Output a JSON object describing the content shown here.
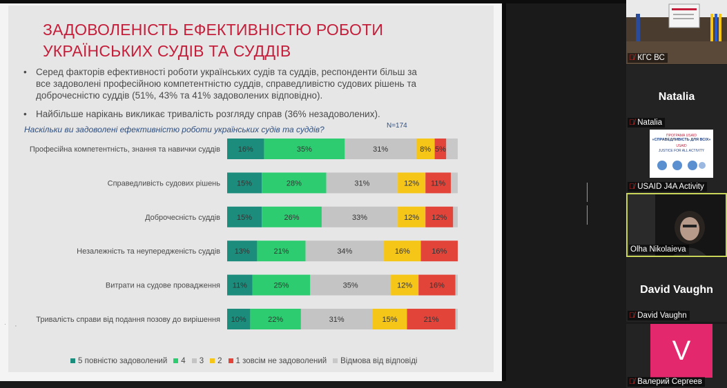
{
  "slide": {
    "title": "ЗАДОВОЛЕНІСТЬ ЕФЕКТИВНІСТЮ РОБОТИ УКРАЇНСЬКИХ СУДІВ ТА СУДДІВ",
    "bullets": [
      "Серед факторів ефективності роботи українських судів та суддів, респонденти більш за все задоволені професійною компетентністю суддів, справедливістю судових рішень та доброчесністю суддів (51%, 43% та 41% задоволених відповідно).",
      "Найбільше нарікань викликає тривалість розгляду справ (36% незадоволених)."
    ],
    "bullet_symbol": "•",
    "question": "Наскільки ви задоволені ефективністю роботи українських судів та суддів?",
    "n_label": "N=174"
  },
  "chart_data": {
    "type": "bar",
    "orientation": "horizontal",
    "stacked": true,
    "categories": [
      "Професійна компетентність, знання та навички суддів",
      "Справедливість судових рішень",
      "Доброчесність суддів",
      "Незалежність та неупередженість суддів",
      "Витрати на судове провадження",
      "Тривалість справи від подання позову до вирішення"
    ],
    "series": [
      {
        "name": "5 повністю задоволений",
        "color": "#1c8c7c",
        "values": [
          16,
          15,
          15,
          13,
          11,
          10
        ]
      },
      {
        "name": "4",
        "color": "#2ecc71",
        "values": [
          35,
          28,
          26,
          21,
          25,
          22
        ]
      },
      {
        "name": "3",
        "color": "#c4c4c4",
        "values": [
          31,
          31,
          33,
          34,
          35,
          31
        ]
      },
      {
        "name": "2",
        "color": "#f5c518",
        "values": [
          8,
          12,
          12,
          16,
          12,
          15
        ]
      },
      {
        "name": "1 зовсім не задоволений",
        "color": "#e2443a",
        "values": [
          5,
          11,
          12,
          16,
          16,
          21
        ]
      },
      {
        "name": "Відмова від відповіді",
        "color": "#c8c8c8",
        "values": [
          5,
          3,
          2,
          0,
          1,
          1
        ]
      }
    ],
    "label_suffix": "%",
    "label_series": [
      0,
      1,
      2,
      3,
      4
    ],
    "xlim": [
      0,
      100
    ],
    "grid": false,
    "legend": "bottom"
  },
  "participants": [
    {
      "name": "КГС ВС",
      "big_name": "",
      "muted": true,
      "active": false,
      "kind": "video-room"
    },
    {
      "name": "Natalia",
      "big_name": "Natalia",
      "muted": true,
      "active": false,
      "kind": "name"
    },
    {
      "name": "USAID J4A Activity",
      "big_name": "",
      "muted": true,
      "active": false,
      "kind": "usaid-card",
      "card": {
        "l1": "ПРОГРАМА USAID",
        "l2": "«СПРАВЕДЛИВІСТЬ ДЛЯ ВСІХ»",
        "l3": "USAID",
        "l4": "JUSTICE FOR ALL ACTIVITY"
      }
    },
    {
      "name": "Olha Nikolaieva",
      "big_name": "",
      "muted": false,
      "active": true,
      "kind": "video-person"
    },
    {
      "name": "David Vaughn",
      "big_name": "David Vaughn",
      "muted": true,
      "active": false,
      "kind": "name"
    },
    {
      "name": "Валерий Сергеев",
      "big_name": "",
      "muted": true,
      "active": false,
      "kind": "avatar",
      "avatar_letter": "V"
    }
  ],
  "icons": {
    "mute": "muted-mic-icon",
    "divider": "panel-resize-handle-icon"
  },
  "colors": {
    "accent_title": "#c41e3a",
    "question": "#2f4f7f",
    "active_speaker": "#c9d65a",
    "avatar": "#e4286e"
  }
}
